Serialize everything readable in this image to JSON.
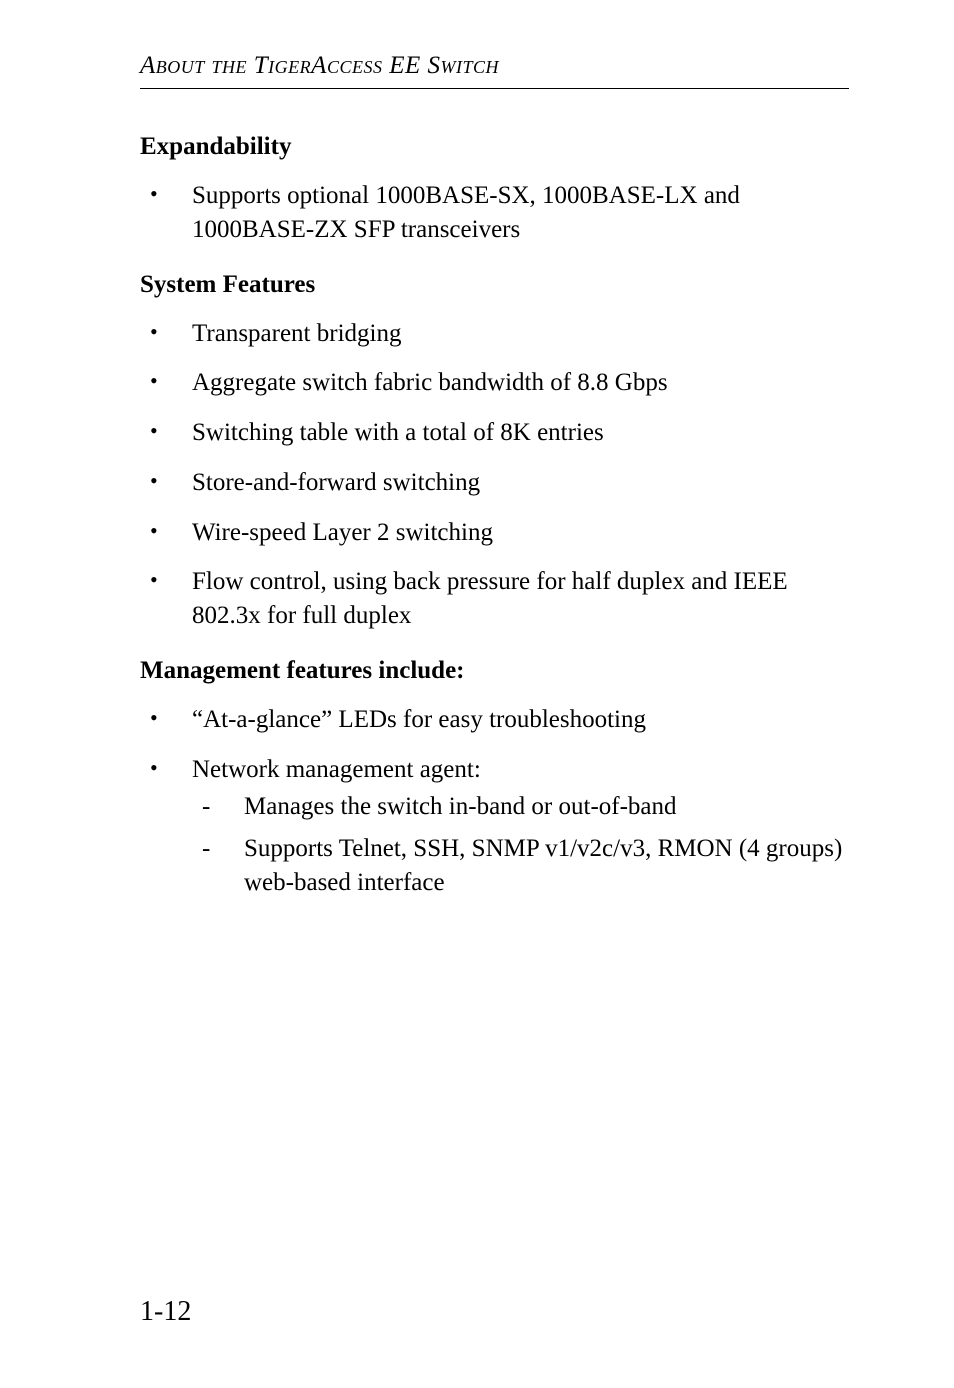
{
  "runningHead": "About the TigerAccess EE Switch",
  "sections": {
    "expandability": {
      "title": "Expandability",
      "items": [
        "Supports optional 1000BASE-SX, 1000BASE-LX and 1000BASE-ZX SFP transceivers"
      ]
    },
    "systemFeatures": {
      "title": "System Features",
      "items": [
        "Transparent bridging",
        "Aggregate switch fabric bandwidth of 8.8 Gbps",
        "Switching table with a total of 8K entries",
        "Store-and-forward switching",
        "Wire-speed Layer 2 switching",
        "Flow control, using back pressure for half duplex and IEEE 802.3x for full duplex"
      ]
    },
    "management": {
      "title": "Management features include:",
      "items": [
        {
          "text": "“At-a-glance” LEDs for easy troubleshooting"
        },
        {
          "text": "Network management agent:",
          "sub": [
            "Manages the switch in-band or out-of-band",
            "Supports Telnet, SSH, SNMP v1/v2c/v3, RMON (4 groups) web-based interface"
          ]
        }
      ]
    }
  },
  "pageNumber": "1-12"
}
